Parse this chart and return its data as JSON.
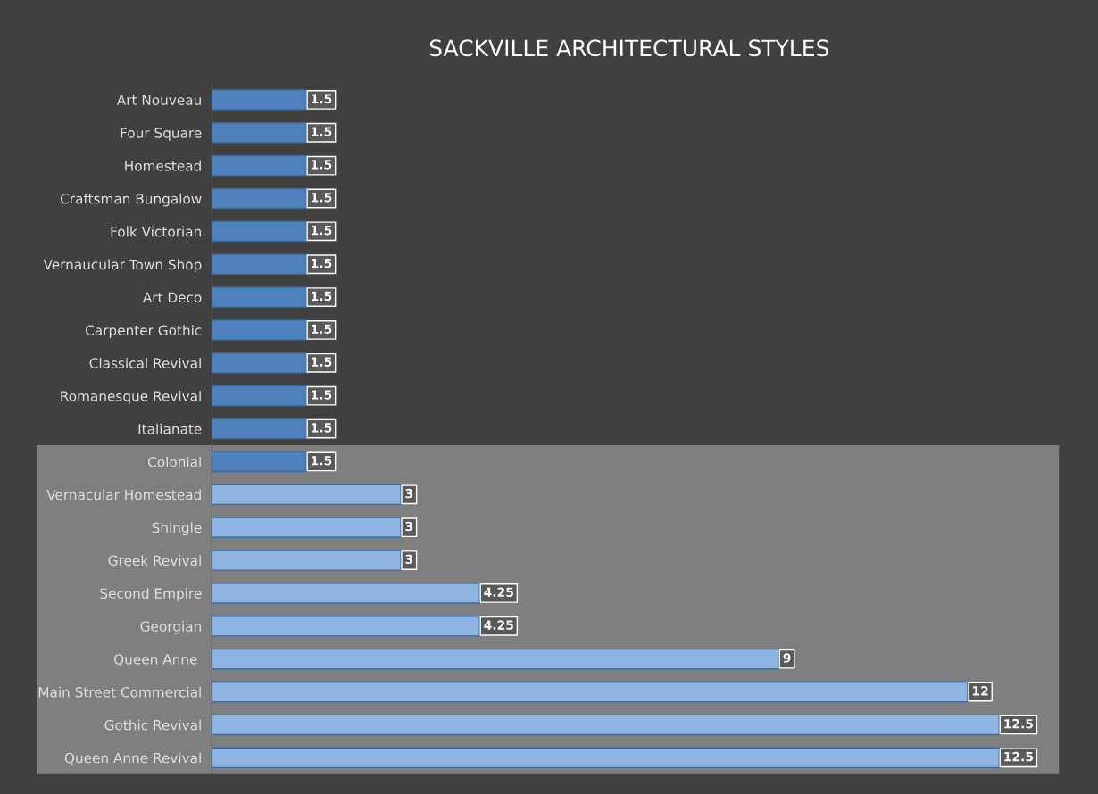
{
  "chart_data": {
    "type": "bar",
    "orientation": "horizontal",
    "title": "SACKVILLE ARCHITECTURAL STYLES",
    "categories": [
      "Art Nouveau",
      "Four Square",
      "Homestead",
      "Craftsman Bungalow",
      "Folk Victorian",
      "Vernaucular Town Shop",
      "Art Deco",
      "Carpenter Gothic",
      "Classical Revival",
      "Romanesque Revival",
      "Italianate",
      "Colonial",
      "Vernacular Homestead",
      "Shingle",
      "Greek Revival",
      "Second Empire",
      "Georgian",
      "Queen Anne ",
      "Main Street Commercial",
      "Gothic Revival",
      "Queen Anne Revival"
    ],
    "values": [
      1.5,
      1.5,
      1.5,
      1.5,
      1.5,
      1.5,
      1.5,
      1.5,
      1.5,
      1.5,
      1.5,
      1.5,
      3,
      3,
      3,
      4.25,
      4.25,
      9,
      12,
      12.5,
      12.5
    ],
    "colors": [
      "#4f81bd",
      "#4f81bd",
      "#4f81bd",
      "#4f81bd",
      "#4f81bd",
      "#4f81bd",
      "#4f81bd",
      "#4f81bd",
      "#4f81bd",
      "#4f81bd",
      "#4f81bd",
      "#4f81bd",
      "#8eb4e3",
      "#8eb4e3",
      "#8eb4e3",
      "#8eb4e3",
      "#8eb4e3",
      "#8eb4e3",
      "#8eb4e3",
      "#8eb4e3",
      "#8eb4e3"
    ],
    "data_labels": true,
    "bands": [
      {
        "axis": "y",
        "from": "Colonial",
        "to": "Queen Anne Revival",
        "color": "#7f7f7f"
      }
    ],
    "grid": false,
    "legend": false
  }
}
